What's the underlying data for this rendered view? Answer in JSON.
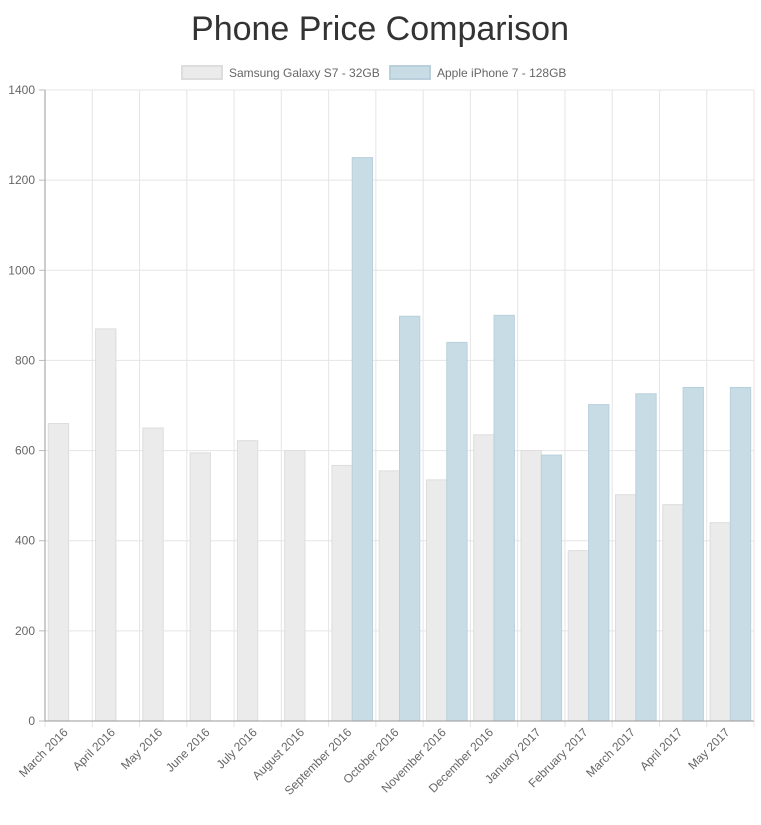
{
  "chart_data": {
    "type": "bar",
    "title": "Phone Price Comparison",
    "xlabel": "",
    "ylabel": "",
    "ylim": [
      0,
      1400
    ],
    "yticks": [
      0,
      200,
      400,
      600,
      800,
      1000,
      1200,
      1400
    ],
    "grid": true,
    "legend_position": "top-center",
    "categories": [
      "March 2016",
      "April 2016",
      "May 2016",
      "June 2016",
      "July 2016",
      "August 2016",
      "September 2016",
      "October 2016",
      "November 2016",
      "December 2016",
      "January 2017",
      "February 2017",
      "March 2017",
      "April 2017",
      "May 2017"
    ],
    "series": [
      {
        "name": "Samsung Galaxy S7 - 32GB",
        "color": "#ebebeb",
        "border_color": "#dddddd",
        "values": [
          660,
          870,
          650,
          595,
          622,
          600,
          567,
          555,
          535,
          635,
          600,
          378,
          502,
          480,
          440
        ]
      },
      {
        "name": "Apple iPhone 7 - 128GB",
        "color": "#c8dce5",
        "border_color": "#b9d0dc",
        "values": [
          null,
          null,
          null,
          null,
          null,
          null,
          1250,
          898,
          840,
          900,
          590,
          702,
          726,
          740,
          740
        ]
      }
    ]
  }
}
